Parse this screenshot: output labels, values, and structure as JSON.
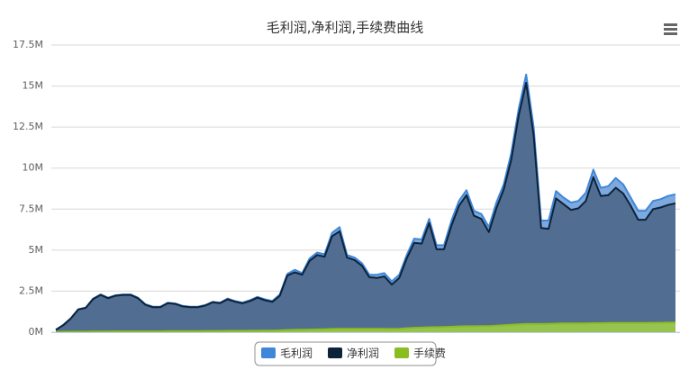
{
  "chart_data": {
    "type": "area",
    "title": "毛利润,净利润,手续费曲线",
    "categories": [
      null,
      null,
      null,
      null,
      null,
      null,
      null,
      null,
      null,
      null,
      null,
      null,
      null,
      null,
      null,
      null,
      null,
      null,
      null,
      null,
      null,
      null,
      null,
      null,
      null,
      null,
      null,
      null,
      null,
      null,
      null,
      null,
      null,
      null,
      null,
      null,
      null,
      null,
      null,
      null,
      null,
      null,
      null,
      null,
      null,
      null,
      null,
      null,
      null,
      null,
      null,
      null,
      null,
      null,
      null,
      null,
      null,
      null,
      null,
      null,
      null,
      null,
      null,
      null,
      null,
      null,
      null,
      null,
      null,
      null,
      null,
      null,
      null,
      null,
      null,
      null,
      null,
      null,
      null,
      null,
      null,
      null,
      null,
      null
    ],
    "ylim": [
      0,
      17.5
    ],
    "yticks": [
      {
        "value": 0,
        "label": "0M"
      },
      {
        "value": 2.5,
        "label": "2.5M"
      },
      {
        "value": 5,
        "label": "5M"
      },
      {
        "value": 7.5,
        "label": "7.5M"
      },
      {
        "value": 10,
        "label": "10M"
      },
      {
        "value": 12.5,
        "label": "12.5M"
      },
      {
        "value": 15,
        "label": "15M"
      },
      {
        "value": 17.5,
        "label": "17.5M"
      }
    ],
    "grid": true,
    "legend": "bottom",
    "series": [
      {
        "name": "毛利润",
        "color": "#3f87d9",
        "values": [
          0.15,
          0.45,
          0.85,
          1.4,
          1.5,
          2.05,
          2.3,
          2.1,
          2.25,
          2.3,
          2.3,
          2.1,
          1.7,
          1.55,
          1.55,
          1.8,
          1.75,
          1.6,
          1.55,
          1.55,
          1.65,
          1.85,
          1.8,
          2.05,
          1.9,
          1.8,
          1.95,
          2.15,
          2.0,
          1.9,
          2.3,
          3.55,
          3.8,
          3.6,
          4.5,
          4.85,
          4.75,
          6.05,
          6.4,
          4.7,
          4.55,
          4.2,
          3.5,
          3.5,
          3.6,
          3.1,
          3.5,
          4.7,
          5.7,
          5.65,
          6.9,
          5.3,
          5.3,
          6.8,
          8.0,
          8.65,
          7.4,
          7.2,
          6.4,
          7.9,
          9.0,
          10.9,
          13.6,
          15.7,
          12.5,
          6.8,
          6.8,
          8.6,
          8.2,
          7.9,
          8.0,
          8.5,
          9.9,
          8.8,
          8.9,
          9.4,
          9.0,
          8.2,
          7.4,
          7.4,
          8.0,
          8.1,
          8.3,
          8.4
        ]
      },
      {
        "name": "净利润",
        "color": "#0d233a",
        "values": [
          0.14,
          0.43,
          0.83,
          1.38,
          1.48,
          2.02,
          2.27,
          2.07,
          2.22,
          2.27,
          2.27,
          2.07,
          1.67,
          1.52,
          1.52,
          1.77,
          1.72,
          1.57,
          1.52,
          1.52,
          1.62,
          1.82,
          1.77,
          2.0,
          1.86,
          1.76,
          1.9,
          2.1,
          1.95,
          1.85,
          2.22,
          3.45,
          3.65,
          3.5,
          4.35,
          4.7,
          4.6,
          5.85,
          6.15,
          4.55,
          4.4,
          4.05,
          3.35,
          3.3,
          3.4,
          2.9,
          3.3,
          4.5,
          5.45,
          5.4,
          6.65,
          5.05,
          5.05,
          6.5,
          7.7,
          8.35,
          7.1,
          6.9,
          6.1,
          7.55,
          8.7,
          10.5,
          13.2,
          15.2,
          12.0,
          6.35,
          6.3,
          8.15,
          7.8,
          7.45,
          7.55,
          8.0,
          9.45,
          8.3,
          8.35,
          8.8,
          8.45,
          7.7,
          6.85,
          6.85,
          7.5,
          7.6,
          7.75,
          7.85
        ]
      },
      {
        "name": "手续费",
        "color": "#8bbc21",
        "values": [
          0.02,
          0.02,
          0.03,
          0.03,
          0.03,
          0.04,
          0.04,
          0.04,
          0.05,
          0.05,
          0.05,
          0.05,
          0.05,
          0.05,
          0.05,
          0.06,
          0.06,
          0.06,
          0.06,
          0.06,
          0.07,
          0.07,
          0.07,
          0.08,
          0.08,
          0.08,
          0.09,
          0.09,
          0.1,
          0.1,
          0.11,
          0.13,
          0.14,
          0.15,
          0.16,
          0.17,
          0.18,
          0.2,
          0.21,
          0.21,
          0.21,
          0.21,
          0.21,
          0.21,
          0.21,
          0.2,
          0.21,
          0.24,
          0.27,
          0.28,
          0.3,
          0.3,
          0.31,
          0.33,
          0.35,
          0.36,
          0.36,
          0.37,
          0.37,
          0.4,
          0.42,
          0.45,
          0.48,
          0.5,
          0.5,
          0.5,
          0.51,
          0.52,
          0.53,
          0.53,
          0.53,
          0.54,
          0.55,
          0.55,
          0.56,
          0.56,
          0.56,
          0.56,
          0.56,
          0.56,
          0.57,
          0.57,
          0.58,
          0.58
        ]
      }
    ]
  }
}
